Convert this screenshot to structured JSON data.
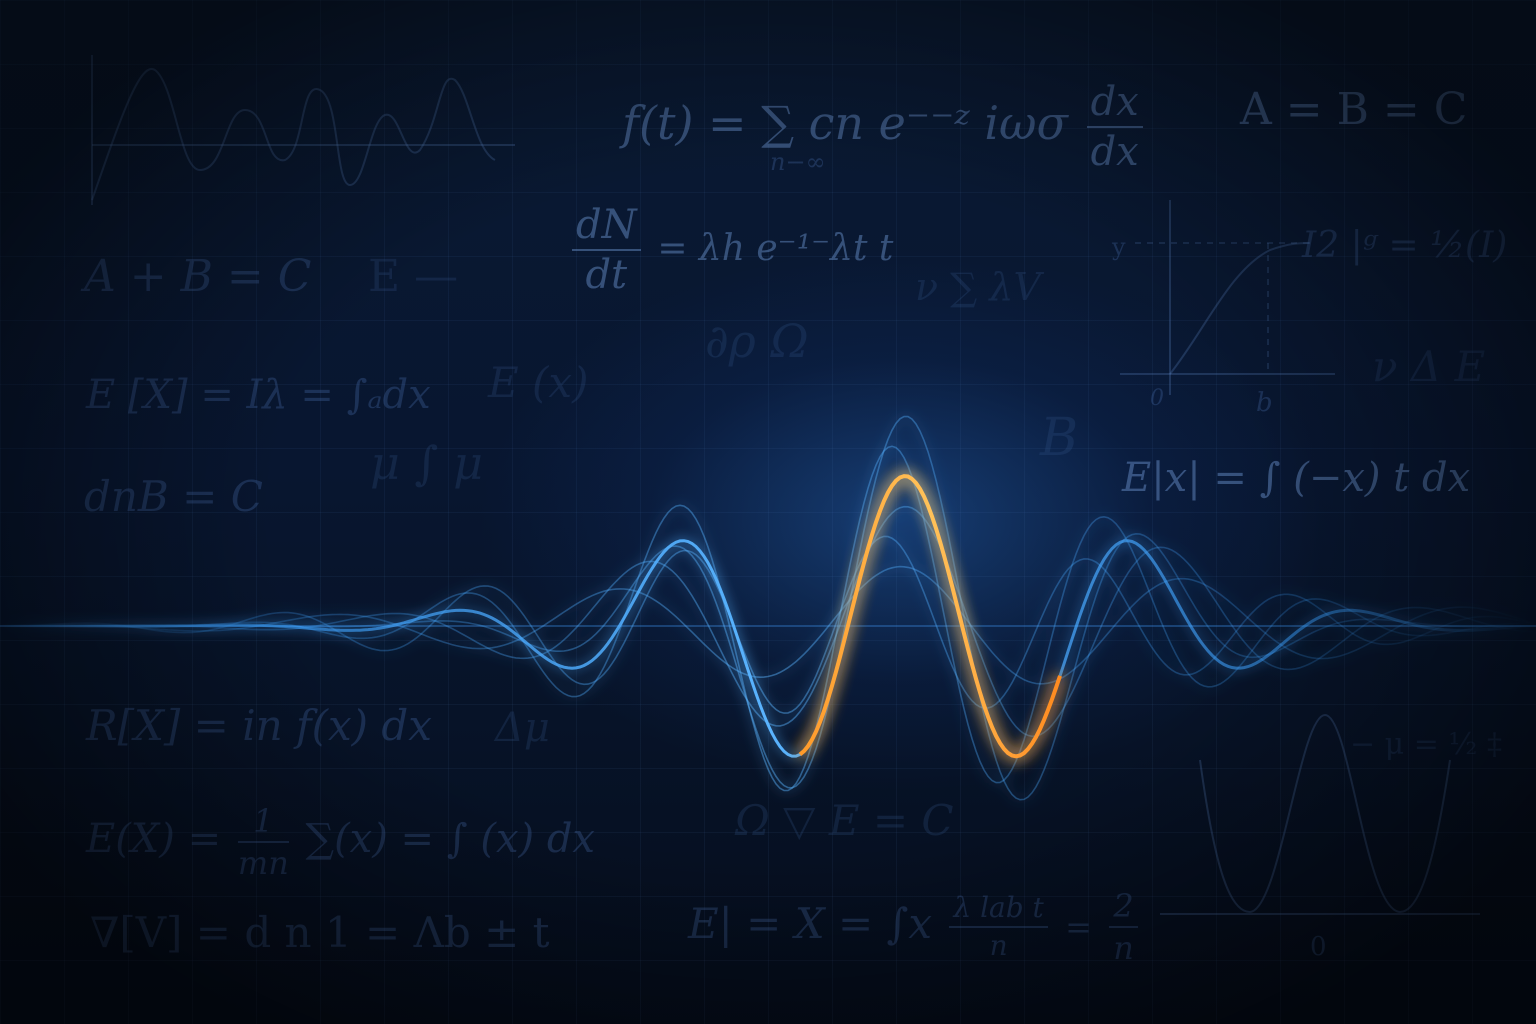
{
  "scene": {
    "colors": {
      "background": "#06101f",
      "wave_blue": "#3aa0ff",
      "wave_highlight": "#ffa938",
      "formula_text": "#4f7fc0"
    },
    "formulas": [
      {
        "id": "f1",
        "text": "f(t) = ∑ cn e⁻⁻ᶻ iωσ"
      },
      {
        "id": "f1_sub",
        "text": "n−∞"
      },
      {
        "id": "f1_frac_num",
        "text": "dx"
      },
      {
        "id": "f1_frac_den",
        "text": "dx"
      },
      {
        "id": "f2",
        "text": "A = B = C"
      },
      {
        "id": "f3_num",
        "text": "dN"
      },
      {
        "id": "f3_den",
        "text": "dt"
      },
      {
        "id": "f3",
        "text": "= λh e⁻¹⁻λt t"
      },
      {
        "id": "f4",
        "text": "A + B = C"
      },
      {
        "id": "f5",
        "text": "E —"
      },
      {
        "id": "f6",
        "text": "E [X] = Iλ = ∫ₐdx"
      },
      {
        "id": "f7",
        "text": "E (x)"
      },
      {
        "id": "f8",
        "text": "dnB = C"
      },
      {
        "id": "f9",
        "text": "μ ∫ μ"
      },
      {
        "id": "f10",
        "text": "∂ρ  Ω"
      },
      {
        "id": "f11",
        "text": "ν ∑ λV"
      },
      {
        "id": "f12",
        "text": "B"
      },
      {
        "id": "f13",
        "text": "I2 |ᵍ = ½(I)"
      },
      {
        "id": "f14",
        "text": "ν Δ E"
      },
      {
        "id": "f15",
        "text": "E|x| = ∫ (−x) t dx"
      },
      {
        "id": "f16",
        "text": "R[X] = in f(x) dx"
      },
      {
        "id": "f17",
        "text": "Δμ"
      },
      {
        "id": "f18",
        "text": "E(X) ="
      },
      {
        "id": "f18_num",
        "text": "1"
      },
      {
        "id": "f18_den",
        "text": "mn"
      },
      {
        "id": "f18b",
        "text": "∑(x) = ∫ (x) dx"
      },
      {
        "id": "f19",
        "text": "Ω ▽ E = C"
      },
      {
        "id": "f20",
        "text": "∇[V] = d n 1 = Λb ± t"
      },
      {
        "id": "f21",
        "text": "E| = X = ∫x"
      },
      {
        "id": "f21_num",
        "text": "λ lab t"
      },
      {
        "id": "f21_den",
        "text": "n"
      },
      {
        "id": "f21_eq",
        "text": "="
      },
      {
        "id": "f21_num2",
        "text": "2"
      },
      {
        "id": "f21_den2",
        "text": "n"
      },
      {
        "id": "f22",
        "text": "− μ = ½ ‡"
      }
    ],
    "axis_labels": {
      "mini_top_y": "y",
      "mini_top_x0": "0",
      "mini_top_xb": "b",
      "mini_bottom_x0": "0"
    }
  }
}
